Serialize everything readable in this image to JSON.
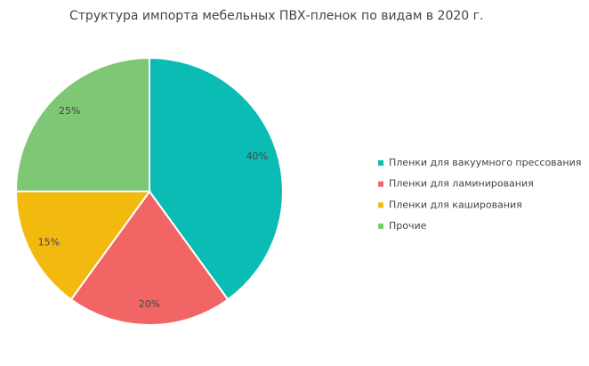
{
  "chart_data": {
    "type": "pie",
    "title": "Структура импорта мебельных ПВХ-пленок по видам в 2020 г.",
    "categories": [
      "Пленки для вакуумного прессования",
      "Пленки для ламинирования",
      "Пленки для каширования",
      "Прочие"
    ],
    "values": [
      40,
      20,
      15,
      25
    ],
    "value_labels": [
      "40%",
      "20%",
      "15%",
      "25%"
    ],
    "colors": [
      "#0bbcb4",
      "#f26565",
      "#f2b90f",
      "#7ec775"
    ],
    "legend": "right"
  }
}
